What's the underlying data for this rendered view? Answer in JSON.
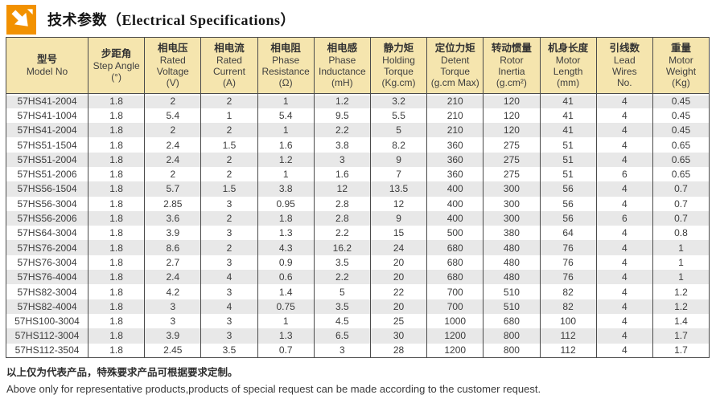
{
  "header": {
    "title": "技术参数（Electrical Specifications）"
  },
  "colors": {
    "icon_orange": "#F29100",
    "header_bg": "#F5E5AE",
    "stripe_gray": "#E8E8E8",
    "border_dark": "#4B4B4B"
  },
  "table": {
    "columns": [
      {
        "zh": "型号",
        "en": "Model No",
        "unit": ""
      },
      {
        "zh": "步距角",
        "en": "Step Angle",
        "unit": "(°)"
      },
      {
        "zh": "相电压",
        "en": "Rated\nVoltage",
        "unit": "(V)"
      },
      {
        "zh": "相电流",
        "en": "Rated\nCurrent",
        "unit": "(A)"
      },
      {
        "zh": "相电阻",
        "en": "Phase\nResistance",
        "unit": "(Ω)"
      },
      {
        "zh": "相电感",
        "en": "Phase\nInductance",
        "unit": "(mH)"
      },
      {
        "zh": "静力矩",
        "en": "Holding\nTorque",
        "unit": "(Kg.cm)"
      },
      {
        "zh": "定位力矩",
        "en": "Detent\nTorque",
        "unit": "(g.cm Max)"
      },
      {
        "zh": "转动惯量",
        "en": "Rotor\nInertia",
        "unit": "(g.cm²)"
      },
      {
        "zh": "机身长度",
        "en": "Motor\nLength",
        "unit": "(mm)"
      },
      {
        "zh": "引线数",
        "en": "Lead\nWires",
        "unit": "No."
      },
      {
        "zh": "重量",
        "en": "Motor\nWeight",
        "unit": "(Kg)"
      }
    ],
    "rows": [
      [
        "57HS41-2004",
        "1.8",
        "2",
        "2",
        "1",
        "1.2",
        "3.2",
        "210",
        "120",
        "41",
        "4",
        "0.45"
      ],
      [
        "57HS41-1004",
        "1.8",
        "5.4",
        "1",
        "5.4",
        "9.5",
        "5.5",
        "210",
        "120",
        "41",
        "4",
        "0.45"
      ],
      [
        "57HS41-2004",
        "1.8",
        "2",
        "2",
        "1",
        "2.2",
        "5",
        "210",
        "120",
        "41",
        "4",
        "0.45"
      ],
      [
        "57HS51-1504",
        "1.8",
        "2.4",
        "1.5",
        "1.6",
        "3.8",
        "8.2",
        "360",
        "275",
        "51",
        "4",
        "0.65"
      ],
      [
        "57HS51-2004",
        "1.8",
        "2.4",
        "2",
        "1.2",
        "3",
        "9",
        "360",
        "275",
        "51",
        "4",
        "0.65"
      ],
      [
        "57HS51-2006",
        "1.8",
        "2",
        "2",
        "1",
        "1.6",
        "7",
        "360",
        "275",
        "51",
        "6",
        "0.65"
      ],
      [
        "57HS56-1504",
        "1.8",
        "5.7",
        "1.5",
        "3.8",
        "12",
        "13.5",
        "400",
        "300",
        "56",
        "4",
        "0.7"
      ],
      [
        "57HS56-3004",
        "1.8",
        "2.85",
        "3",
        "0.95",
        "2.8",
        "12",
        "400",
        "300",
        "56",
        "4",
        "0.7"
      ],
      [
        "57HS56-2006",
        "1.8",
        "3.6",
        "2",
        "1.8",
        "2.8",
        "9",
        "400",
        "300",
        "56",
        "6",
        "0.7"
      ],
      [
        "57HS64-3004",
        "1.8",
        "3.9",
        "3",
        "1.3",
        "2.2",
        "15",
        "500",
        "380",
        "64",
        "4",
        "0.8"
      ],
      [
        "57HS76-2004",
        "1.8",
        "8.6",
        "2",
        "4.3",
        "16.2",
        "24",
        "680",
        "480",
        "76",
        "4",
        "1"
      ],
      [
        "57HS76-3004",
        "1.8",
        "2.7",
        "3",
        "0.9",
        "3.5",
        "20",
        "680",
        "480",
        "76",
        "4",
        "1"
      ],
      [
        "57HS76-4004",
        "1.8",
        "2.4",
        "4",
        "0.6",
        "2.2",
        "20",
        "680",
        "480",
        "76",
        "4",
        "1"
      ],
      [
        "57HS82-3004",
        "1.8",
        "4.2",
        "3",
        "1.4",
        "5",
        "22",
        "700",
        "510",
        "82",
        "4",
        "1.2"
      ],
      [
        "57HS82-4004",
        "1.8",
        "3",
        "4",
        "0.75",
        "3.5",
        "20",
        "700",
        "510",
        "82",
        "4",
        "1.2"
      ],
      [
        "57HS100-3004",
        "1.8",
        "3",
        "3",
        "1",
        "4.5",
        "25",
        "1000",
        "680",
        "100",
        "4",
        "1.4"
      ],
      [
        "57HS112-3004",
        "1.8",
        "3.9",
        "3",
        "1.3",
        "6.5",
        "30",
        "1200",
        "800",
        "112",
        "4",
        "1.7"
      ],
      [
        "57HS112-3504",
        "1.8",
        "2.45",
        "3.5",
        "0.7",
        "3",
        "28",
        "1200",
        "800",
        "112",
        "4",
        "1.7"
      ]
    ]
  },
  "footer": {
    "note_zh": "以上仅为代表产品，特殊要求产品可根据要求定制。",
    "note_en": "Above only for representative products,products of special request can be made according to the customer request."
  }
}
